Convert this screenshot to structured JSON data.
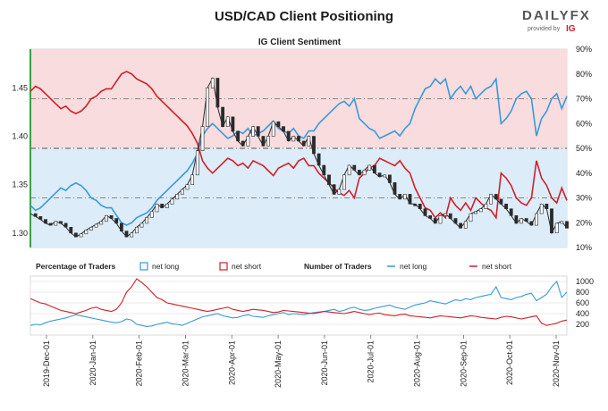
{
  "header": {
    "title": "USD/CAD Client Positioning",
    "subtitle": "IG Client Sentiment",
    "logo_text": "DAILYFX",
    "logo_sub": "provided by",
    "logo_brand": "IG"
  },
  "colors": {
    "long": "#3a9ad9",
    "short": "#d0202a",
    "price": "#2b2b2b",
    "long_fill": "#dcecf8",
    "short_fill": "#f8dcde",
    "accent_green": "#3aa142"
  },
  "chart_data": [
    {
      "type": "line",
      "title": "IG Client Sentiment",
      "price_axis": {
        "ticks": [
          "1.30",
          "1.35",
          "1.40",
          "1.45"
        ],
        "values": [
          1.3,
          1.35,
          1.4,
          1.45
        ],
        "range": [
          1.285,
          1.49
        ]
      },
      "pct_axis": {
        "ticks": [
          "10%",
          "20%",
          "30%",
          "40%",
          "50%",
          "60%",
          "70%",
          "80%",
          "90%"
        ],
        "values": [
          10,
          20,
          30,
          40,
          50,
          60,
          70,
          80,
          90
        ],
        "range": [
          10,
          90
        ]
      },
      "reference_lines_pct": [
        30,
        50,
        70
      ],
      "series": [
        {
          "name": "USD/CAD",
          "values": [
            1.32,
            1.317,
            1.314,
            1.31,
            1.308,
            1.312,
            1.31,
            1.306,
            1.3,
            1.296,
            1.299,
            1.303,
            1.306,
            1.309,
            1.312,
            1.318,
            1.315,
            1.31,
            1.302,
            1.296,
            1.3,
            1.306,
            1.31,
            1.316,
            1.322,
            1.33,
            1.326,
            1.33,
            1.335,
            1.34,
            1.345,
            1.35,
            1.36,
            1.385,
            1.41,
            1.45,
            1.46,
            1.43,
            1.41,
            1.42,
            1.405,
            1.395,
            1.39,
            1.4,
            1.41,
            1.4,
            1.39,
            1.4,
            1.415,
            1.41,
            1.405,
            1.395,
            1.4,
            1.395,
            1.39,
            1.4,
            1.382,
            1.37,
            1.36,
            1.35,
            1.34,
            1.345,
            1.36,
            1.37,
            1.365,
            1.36,
            1.365,
            1.37,
            1.362,
            1.358,
            1.36,
            1.352,
            1.34,
            1.335,
            1.34,
            1.33,
            1.33,
            1.325,
            1.318,
            1.315,
            1.31,
            1.318,
            1.32,
            1.315,
            1.31,
            1.305,
            1.312,
            1.32,
            1.322,
            1.325,
            1.33,
            1.34,
            1.335,
            1.33,
            1.325,
            1.318,
            1.31,
            1.315,
            1.312,
            1.308,
            1.32,
            1.33,
            1.325,
            1.3,
            1.31,
            1.312,
            1.305
          ]
        },
        {
          "name": "net long",
          "values": [
            27,
            25,
            26,
            28,
            30,
            32,
            34,
            33,
            35,
            36,
            35,
            33,
            30,
            29,
            27,
            26,
            26,
            23,
            20,
            19,
            20,
            22,
            23,
            24,
            26,
            29,
            31,
            33,
            35,
            37,
            39,
            41,
            44,
            48,
            55,
            58,
            60,
            58,
            56,
            54,
            55,
            57,
            56,
            58,
            55,
            56,
            57,
            59,
            61,
            58,
            57,
            56,
            58,
            55,
            54,
            57,
            57,
            60,
            62,
            64,
            66,
            68,
            69,
            67,
            70,
            62,
            60,
            58,
            57,
            54,
            55,
            56,
            57,
            55,
            58,
            60,
            66,
            70,
            74,
            75,
            78,
            76,
            78,
            70,
            73,
            75,
            72,
            75,
            70,
            72,
            74,
            75,
            78,
            60,
            62,
            65,
            70,
            72,
            73,
            70,
            55,
            62,
            65,
            70,
            72,
            66,
            71
          ]
        },
        {
          "name": "net short",
          "values": [
            73,
            75,
            74,
            72,
            70,
            68,
            66,
            67,
            65,
            64,
            65,
            67,
            70,
            71,
            73,
            74,
            74,
            77,
            80,
            81,
            80,
            78,
            77,
            76,
            74,
            71,
            69,
            67,
            65,
            63,
            61,
            59,
            56,
            52,
            45,
            42,
            40,
            42,
            44,
            46,
            45,
            43,
            44,
            42,
            45,
            44,
            43,
            41,
            39,
            42,
            43,
            44,
            42,
            45,
            46,
            43,
            43,
            40,
            38,
            36,
            34,
            32,
            31,
            33,
            30,
            38,
            40,
            42,
            43,
            46,
            45,
            44,
            43,
            45,
            42,
            40,
            34,
            30,
            26,
            25,
            22,
            24,
            22,
            30,
            27,
            25,
            28,
            25,
            30,
            28,
            26,
            25,
            22,
            40,
            38,
            35,
            30,
            28,
            27,
            30,
            45,
            38,
            35,
            30,
            28,
            34,
            29
          ]
        }
      ]
    },
    {
      "type": "line",
      "legend_pct": {
        "title": "Percentage of Traders",
        "long_label": "net long",
        "short_label": "net short"
      },
      "legend_num": {
        "title": "Number of Traders",
        "long_label": "net long",
        "short_label": "net short"
      },
      "y_axis": {
        "ticks": [
          "200",
          "400",
          "600",
          "800",
          "1000"
        ],
        "values": [
          200,
          400,
          600,
          800,
          1000
        ],
        "range": [
          0,
          1100
        ]
      },
      "x_ticks": [
        "2019-Dec-01",
        "2020-Jan-01",
        "2020-Feb-01",
        "2020-Mar-01",
        "2020-Apr-01",
        "2020-May-01",
        "2020-Jun-01",
        "2020-Jul-01",
        "2020-Aug-01",
        "2020-Sep-01",
        "2020-Oct-01",
        "2020-Nov-01"
      ],
      "series": [
        {
          "name": "net long",
          "values": [
            180,
            200,
            190,
            230,
            260,
            280,
            300,
            320,
            350,
            380,
            360,
            340,
            320,
            300,
            280,
            260,
            240,
            230,
            250,
            300,
            280,
            200,
            180,
            160,
            170,
            200,
            220,
            240,
            210,
            200,
            180,
            220,
            260,
            300,
            340,
            360,
            380,
            400,
            360,
            340,
            320,
            330,
            360,
            380,
            350,
            340,
            330,
            360,
            380,
            400,
            420,
            380,
            400,
            390,
            380,
            400,
            420,
            430,
            440,
            460,
            480,
            440,
            460,
            500,
            520,
            480,
            460,
            470,
            500,
            520,
            540,
            560,
            520,
            500,
            480,
            520,
            560,
            580,
            600,
            640,
            620,
            600,
            580,
            620,
            660,
            640,
            680,
            660,
            700,
            720,
            740,
            760,
            900,
            700,
            680,
            660,
            700,
            720,
            760,
            780,
            640,
            700,
            760,
            900,
            1000,
            700,
            800
          ]
        },
        {
          "name": "net short",
          "values": [
            680,
            640,
            600,
            580,
            540,
            500,
            460,
            440,
            420,
            400,
            430,
            460,
            500,
            520,
            480,
            460,
            440,
            480,
            600,
            800,
            900,
            1050,
            980,
            900,
            800,
            700,
            660,
            600,
            580,
            560,
            540,
            520,
            500,
            480,
            460,
            440,
            460,
            480,
            500,
            520,
            480,
            460,
            440,
            460,
            480,
            470,
            460,
            440,
            420,
            430,
            460,
            450,
            440,
            430,
            420,
            410,
            400,
            420,
            440,
            430,
            420,
            410,
            400,
            420,
            440,
            420,
            400,
            380,
            400,
            410,
            380,
            370,
            360,
            380,
            390,
            360,
            350,
            340,
            330,
            320,
            340,
            360,
            350,
            340,
            330,
            320,
            340,
            360,
            350,
            330,
            320,
            310,
            300,
            330,
            350,
            340,
            320,
            300,
            320,
            340,
            360,
            220,
            180,
            200,
            220,
            260,
            280
          ]
        }
      ]
    }
  ]
}
